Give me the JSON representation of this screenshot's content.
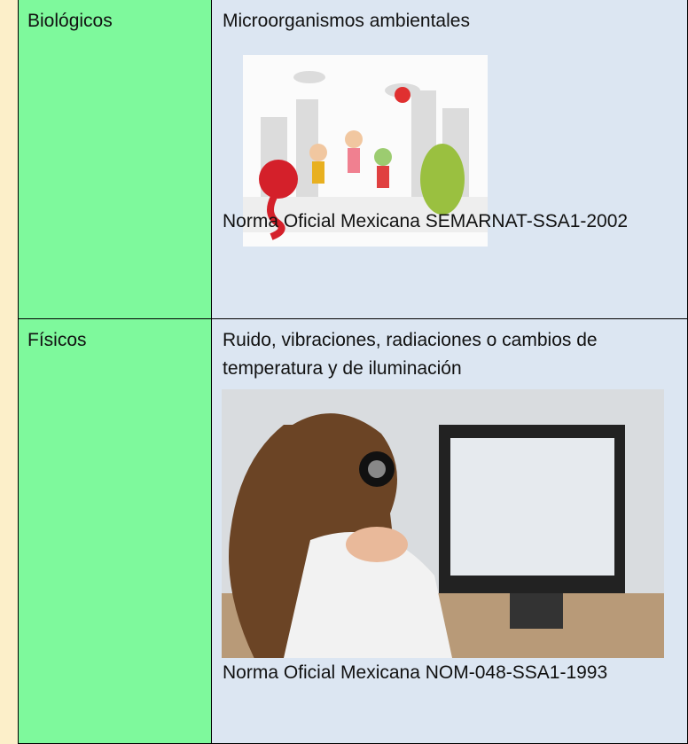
{
  "table": {
    "rows": [
      {
        "category": "Biológicos",
        "description": "Microorganismos ambientales",
        "standard": "Norma Oficial Mexicana SEMARNAT-SSA1-2002"
      },
      {
        "category": "Físicos",
        "description": "Ruido, vibraciones, radiaciones o cambios de temperatura y de iluminación",
        "standard": "Norma Oficial Mexicana NOM-048-SSA1-1993"
      }
    ]
  }
}
